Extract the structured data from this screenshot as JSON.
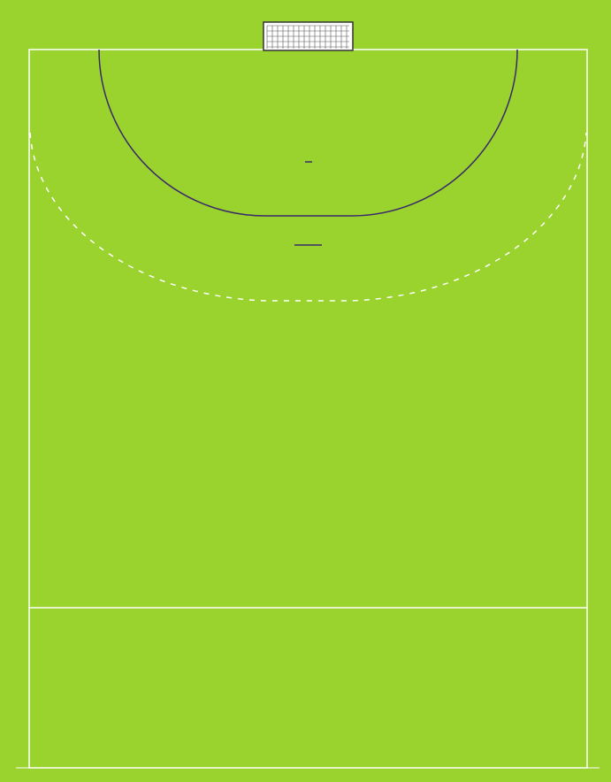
{
  "court": {
    "surface_color": "#9ad22e",
    "line_color": "#ffffff",
    "area_line_color": "#3a2a6a",
    "goal_frame_color": "#333333",
    "goal_fill_color": "#ffffff",
    "net_color": "#555555"
  }
}
